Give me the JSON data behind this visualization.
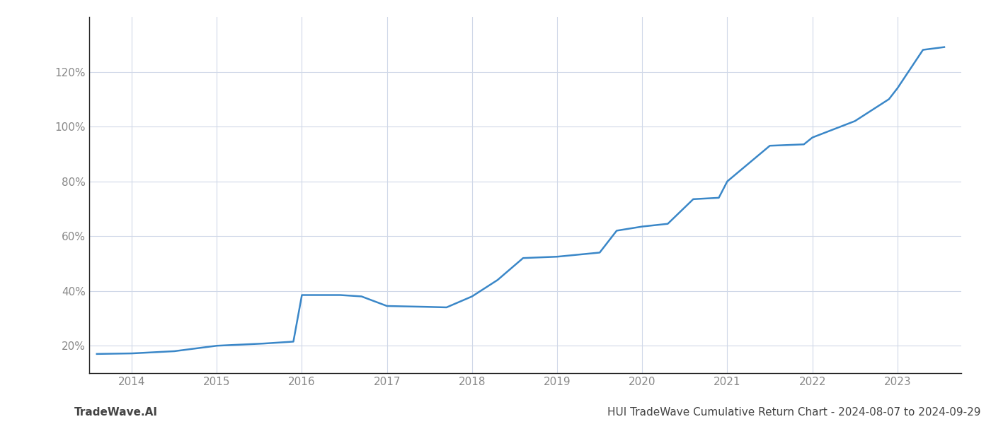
{
  "x_years": [
    2013.59,
    2014.0,
    2014.5,
    2015.0,
    2015.55,
    2015.9,
    2016.0,
    2016.45,
    2016.7,
    2017.0,
    2017.45,
    2017.7,
    2018.0,
    2018.3,
    2018.6,
    2019.0,
    2019.5,
    2019.7,
    2020.0,
    2020.3,
    2020.6,
    2020.9,
    2021.0,
    2021.5,
    2021.9,
    2022.0,
    2022.5,
    2022.9,
    2023.0,
    2023.3,
    2023.55
  ],
  "y_values": [
    17.0,
    17.2,
    18.0,
    20.0,
    20.8,
    21.5,
    38.5,
    38.5,
    38.0,
    34.5,
    34.2,
    34.0,
    38.0,
    44.0,
    52.0,
    52.5,
    54.0,
    62.0,
    63.5,
    64.5,
    73.5,
    74.0,
    80.0,
    93.0,
    93.5,
    96.0,
    102.0,
    110.0,
    114.0,
    128.0,
    129.0
  ],
  "line_color": "#3a87c8",
  "line_width": 1.8,
  "background_color": "#ffffff",
  "grid_color": "#d0d8e8",
  "yticks": [
    20,
    40,
    60,
    80,
    100,
    120
  ],
  "ytick_labels": [
    "20%",
    "40%",
    "60%",
    "80%",
    "100%",
    "120%"
  ],
  "xticks": [
    2014,
    2015,
    2016,
    2017,
    2018,
    2019,
    2020,
    2021,
    2022,
    2023
  ],
  "xlim": [
    2013.5,
    2023.75
  ],
  "ylim": [
    10,
    140
  ],
  "footer_left": "TradeWave.AI",
  "footer_right": "HUI TradeWave Cumulative Return Chart - 2024-08-07 to 2024-09-29",
  "tick_label_color": "#888888",
  "spine_color": "#222222",
  "footer_fontsize": 11,
  "footer_color": "#444444"
}
